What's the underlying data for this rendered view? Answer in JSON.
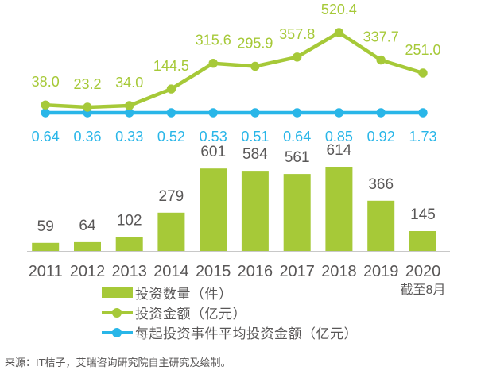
{
  "chart_data": {
    "type": "combo",
    "title": "",
    "xlabel": "",
    "ylabel": "",
    "grid": false,
    "legend_position": "bottom",
    "categories": [
      "2011",
      "2012",
      "2013",
      "2014",
      "2015",
      "2016",
      "2017",
      "2018",
      "2019",
      "2020"
    ],
    "x_note": "截至8月",
    "series": [
      {
        "name": "投资数量（件）",
        "type": "bar",
        "unit": "件",
        "color": "#a6c938",
        "values": [
          59,
          64,
          102,
          279,
          601,
          584,
          561,
          614,
          366,
          145
        ],
        "labels": [
          "59",
          "64",
          "102",
          "279",
          "601",
          "584",
          "561",
          "614",
          "366",
          "145"
        ]
      },
      {
        "name": "投资金额（亿元）",
        "type": "line",
        "unit": "亿元",
        "color": "#a6c938",
        "values": [
          38.0,
          23.2,
          34.0,
          144.5,
          315.6,
          295.9,
          357.8,
          520.4,
          337.7,
          251.0
        ],
        "labels": [
          "38.0",
          "23.2",
          "34.0",
          "144.5",
          "315.6",
          "295.9",
          "357.8",
          "520.4",
          "337.7",
          "251.0"
        ]
      },
      {
        "name": "每起投资事件平均投资金额（亿元）",
        "type": "line",
        "unit": "亿元",
        "color": "#29b6e8",
        "values": [
          0.64,
          0.36,
          0.33,
          0.52,
          0.53,
          0.51,
          0.64,
          0.85,
          0.92,
          1.73
        ],
        "labels": [
          "0.64",
          "0.36",
          "0.33",
          "0.52",
          "0.53",
          "0.51",
          "0.64",
          "0.85",
          "0.92",
          "1.73"
        ]
      }
    ]
  },
  "colors": {
    "bar_green": "#a6c938",
    "line_green": "#a6c938",
    "line_cyan": "#29b6e8",
    "text_gray": "#595757",
    "axis_line": "#c8c8c8"
  },
  "source": "来源：IT桔子，艾瑞咨询研究院自主研究及绘制。"
}
